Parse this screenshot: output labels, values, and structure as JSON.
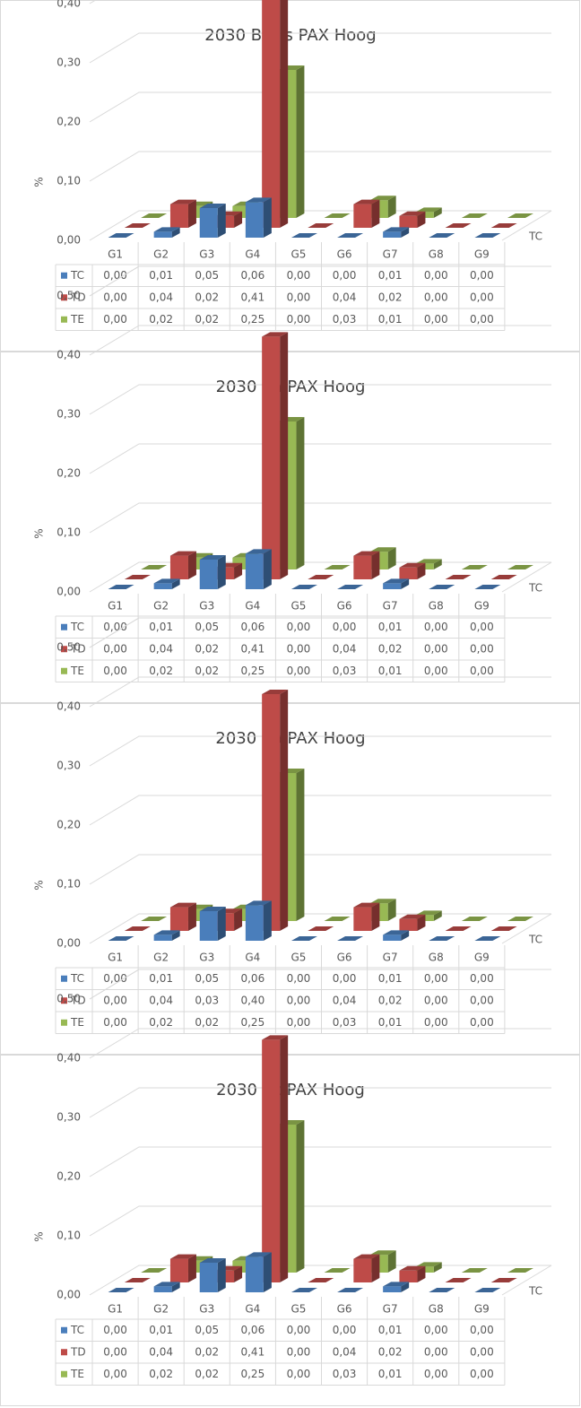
{
  "chart_data": [
    {
      "type": "bar3d",
      "title": "2030 Basis PAX Hoog",
      "ylabel": "%",
      "zlabel": "TC",
      "categories": [
        "G1",
        "G2",
        "G3",
        "G4",
        "G5",
        "G6",
        "G7",
        "G8",
        "G9"
      ],
      "ylim": [
        0,
        0.5
      ],
      "yticks": [
        {
          "value": 0,
          "label": "0,00"
        },
        {
          "value": 0.1,
          "label": "0,10"
        },
        {
          "value": 0.2,
          "label": "0,20"
        },
        {
          "value": 0.3,
          "label": "0,30"
        },
        {
          "value": 0.4,
          "label": "0,40"
        }
      ],
      "grid": true,
      "series": [
        {
          "name": "TC",
          "color": "#4a7ebb",
          "values": [
            0,
            0.01,
            0.05,
            0.06,
            0,
            0,
            0.01,
            0,
            0
          ],
          "value_labels": [
            "0,00",
            "0,01",
            "0,05",
            "0,06",
            "0,00",
            "0,00",
            "0,01",
            "0,00",
            "0,00"
          ]
        },
        {
          "name": "TD",
          "color": "#be4b48",
          "values": [
            0,
            0.04,
            0.02,
            0.41,
            0,
            0.04,
            0.02,
            0,
            0
          ],
          "value_labels": [
            "0,00",
            "0,04",
            "0,02",
            "0,41",
            "0,00",
            "0,04",
            "0,02",
            "0,00",
            "0,00"
          ]
        },
        {
          "name": "TE",
          "color": "#98b954",
          "values": [
            0,
            0.02,
            0.02,
            0.25,
            0,
            0.03,
            0.01,
            0,
            0
          ],
          "value_labels": [
            "0,00",
            "0,02",
            "0,02",
            "0,25",
            "0,00",
            "0,03",
            "0,01",
            "0,00",
            "0,00"
          ]
        }
      ]
    },
    {
      "type": "bar3d",
      "title": "2030 2a PAX Hoog",
      "ylabel": "%",
      "zlabel": "TC",
      "categories": [
        "G1",
        "G2",
        "G3",
        "G4",
        "G5",
        "G6",
        "G7",
        "G8",
        "G9"
      ],
      "ylim": [
        0,
        0.5
      ],
      "yticks": [
        {
          "value": 0,
          "label": "0,00"
        },
        {
          "value": 0.1,
          "label": "0,10"
        },
        {
          "value": 0.2,
          "label": "0,20"
        },
        {
          "value": 0.3,
          "label": "0,30"
        },
        {
          "value": 0.4,
          "label": "0,40"
        },
        {
          "value": 0.5,
          "label": "0,50"
        }
      ],
      "grid": true,
      "series": [
        {
          "name": "TC",
          "color": "#4a7ebb",
          "values": [
            0,
            0.01,
            0.05,
            0.06,
            0,
            0,
            0.01,
            0,
            0
          ],
          "value_labels": [
            "0,00",
            "0,01",
            "0,05",
            "0,06",
            "0,00",
            "0,00",
            "0,01",
            "0,00",
            "0,00"
          ]
        },
        {
          "name": "TD",
          "color": "#be4b48",
          "values": [
            0,
            0.04,
            0.02,
            0.41,
            0,
            0.04,
            0.02,
            0,
            0
          ],
          "value_labels": [
            "0,00",
            "0,04",
            "0,02",
            "0,41",
            "0,00",
            "0,04",
            "0,02",
            "0,00",
            "0,00"
          ]
        },
        {
          "name": "TE",
          "color": "#98b954",
          "values": [
            0,
            0.02,
            0.02,
            0.25,
            0,
            0.03,
            0.01,
            0,
            0
          ],
          "value_labels": [
            "0,00",
            "0,02",
            "0,02",
            "0,25",
            "0,00",
            "0,03",
            "0,01",
            "0,00",
            "0,00"
          ]
        }
      ]
    },
    {
      "type": "bar3d",
      "title": "2030 2b PAX Hoog",
      "ylabel": "%",
      "zlabel": "TC",
      "categories": [
        "G1",
        "G2",
        "G3",
        "G4",
        "G5",
        "G6",
        "G7",
        "G8",
        "G9"
      ],
      "ylim": [
        0,
        0.5
      ],
      "yticks": [
        {
          "value": 0,
          "label": "0,00"
        },
        {
          "value": 0.1,
          "label": "0,10"
        },
        {
          "value": 0.2,
          "label": "0,20"
        },
        {
          "value": 0.3,
          "label": "0,30"
        },
        {
          "value": 0.4,
          "label": "0,40"
        },
        {
          "value": 0.5,
          "label": "0,50"
        }
      ],
      "grid": true,
      "series": [
        {
          "name": "TC",
          "color": "#4a7ebb",
          "values": [
            0,
            0.01,
            0.05,
            0.06,
            0,
            0,
            0.01,
            0,
            0
          ],
          "value_labels": [
            "0,00",
            "0,01",
            "0,05",
            "0,06",
            "0,00",
            "0,00",
            "0,01",
            "0,00",
            "0,00"
          ]
        },
        {
          "name": "TD",
          "color": "#be4b48",
          "values": [
            0,
            0.04,
            0.03,
            0.4,
            0,
            0.04,
            0.02,
            0,
            0
          ],
          "value_labels": [
            "0,00",
            "0,04",
            "0,03",
            "0,40",
            "0,00",
            "0,04",
            "0,02",
            "0,00",
            "0,00"
          ]
        },
        {
          "name": "TE",
          "color": "#98b954",
          "values": [
            0,
            0.02,
            0.02,
            0.25,
            0,
            0.03,
            0.01,
            0,
            0
          ],
          "value_labels": [
            "0,00",
            "0,02",
            "0,02",
            "0,25",
            "0,00",
            "0,03",
            "0,01",
            "0,00",
            "0,00"
          ]
        }
      ]
    },
    {
      "type": "bar3d",
      "title": "2030 2c PAX Hoog",
      "ylabel": "%",
      "zlabel": "TC",
      "categories": [
        "G1",
        "G2",
        "G3",
        "G4",
        "G5",
        "G6",
        "G7",
        "G8",
        "G9"
      ],
      "ylim": [
        0,
        0.5
      ],
      "yticks": [
        {
          "value": 0,
          "label": "0,00"
        },
        {
          "value": 0.1,
          "label": "0,10"
        },
        {
          "value": 0.2,
          "label": "0,20"
        },
        {
          "value": 0.3,
          "label": "0,30"
        },
        {
          "value": 0.4,
          "label": "0,40"
        },
        {
          "value": 0.5,
          "label": "0,50"
        }
      ],
      "grid": true,
      "series": [
        {
          "name": "TC",
          "color": "#4a7ebb",
          "values": [
            0,
            0.01,
            0.05,
            0.06,
            0,
            0,
            0.01,
            0,
            0
          ],
          "value_labels": [
            "0,00",
            "0,01",
            "0,05",
            "0,06",
            "0,00",
            "0,00",
            "0,01",
            "0,00",
            "0,00"
          ]
        },
        {
          "name": "TD",
          "color": "#be4b48",
          "values": [
            0,
            0.04,
            0.02,
            0.41,
            0,
            0.04,
            0.02,
            0,
            0
          ],
          "value_labels": [
            "0,00",
            "0,04",
            "0,02",
            "0,41",
            "0,00",
            "0,04",
            "0,02",
            "0,00",
            "0,00"
          ]
        },
        {
          "name": "TE",
          "color": "#98b954",
          "values": [
            0,
            0.02,
            0.02,
            0.25,
            0,
            0.03,
            0.01,
            0,
            0
          ],
          "value_labels": [
            "0,00",
            "0,02",
            "0,02",
            "0,25",
            "0,00",
            "0,03",
            "0,01",
            "0,00",
            "0,00"
          ]
        }
      ]
    }
  ]
}
